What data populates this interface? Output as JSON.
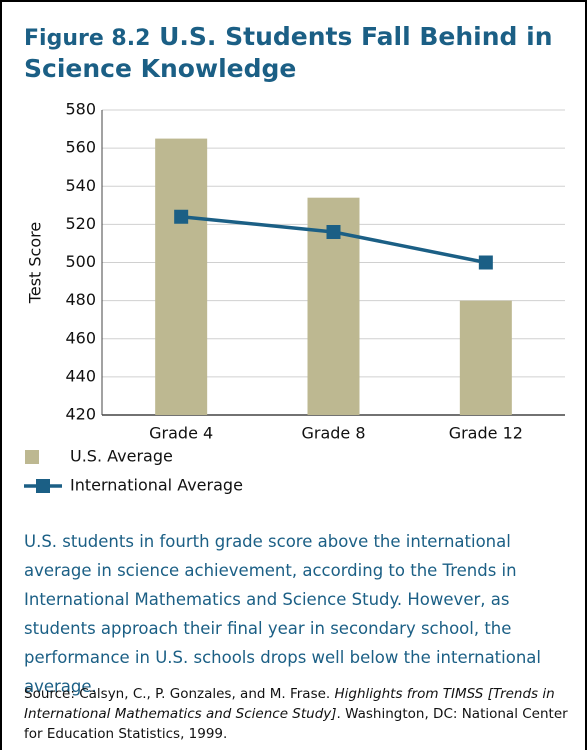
{
  "chart_data": {
    "type": "bar",
    "figure_label": "Figure 8.2",
    "title": "U.S. Students Fall Behind in Science Knowledge",
    "y_label": "Test Score",
    "categories": [
      "Grade 4",
      "Grade 8",
      "Grade 12"
    ],
    "series": [
      {
        "name": "U.S. Average",
        "color": "#bdb891",
        "type": "bar",
        "values": [
          565,
          534,
          480
        ]
      },
      {
        "name": "International Average",
        "color": "#1b5f85",
        "type": "line",
        "values": [
          524,
          516,
          500
        ]
      }
    ],
    "ylim": [
      420,
      580
    ],
    "yticks": [
      420,
      440,
      460,
      480,
      500,
      520,
      540,
      560,
      580
    ],
    "grid": true,
    "caption": "U.S. students in fourth grade score above the international average in science achievement, according to the Trends in International Mathematics and Science Study. However, as students approach their final year in secondary school, the performance in U.S. schools drops well below the international average.",
    "source": {
      "before": "Source: Calsyn, C., P. Gonzales, and M. Frase. ",
      "italic": "Highlights from TIMSS [Trends in International Mathematics and Science Study]",
      "after": ". Washington, DC: National Center for Education Statistics, 1999."
    }
  }
}
